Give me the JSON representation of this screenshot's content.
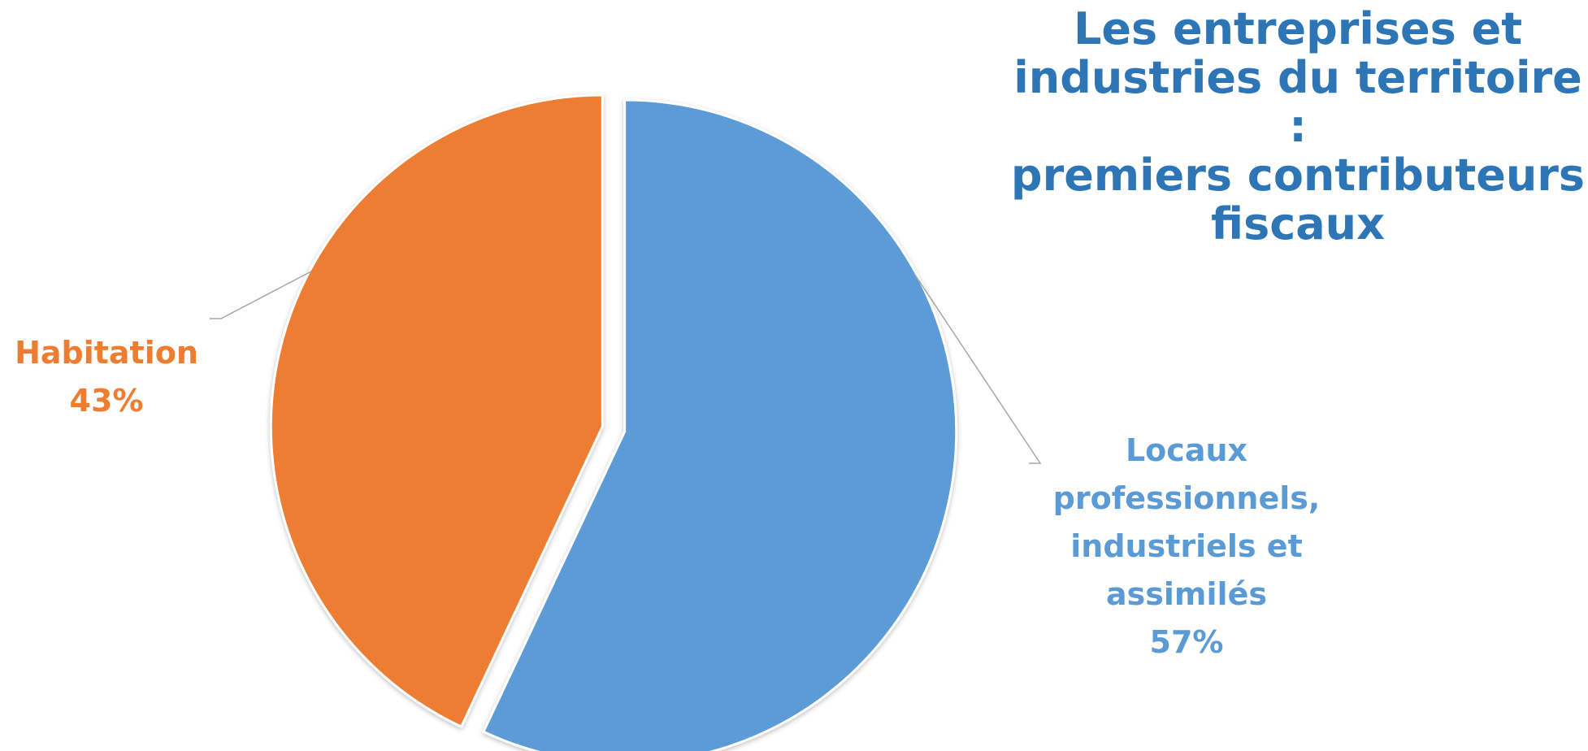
{
  "chart_data": {
    "type": "pie",
    "title": "Les entreprises et\nindustries du territoire :\npremiers contributeurs\nfiscaux",
    "categories": [
      "Habitation",
      "Locaux\nprofessionnels,\nindustriels et\nassimilés"
    ],
    "values": [
      43,
      57
    ],
    "value_labels": [
      "43%",
      "57%"
    ],
    "colors": [
      "#ED7D31",
      "#5B9BD5"
    ],
    "legend": "none",
    "exploded": true
  }
}
